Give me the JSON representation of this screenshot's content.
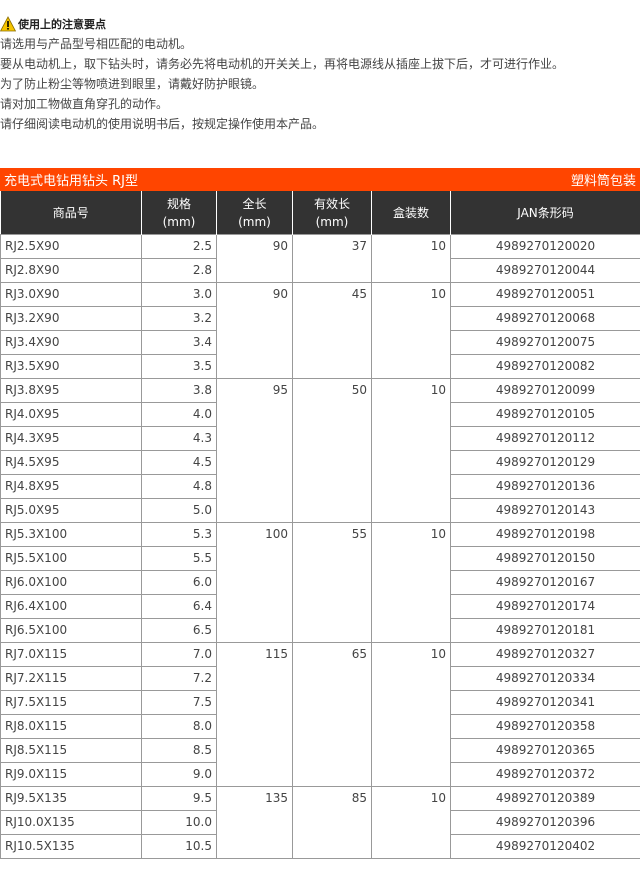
{
  "notes": {
    "title": "使用上的注意要点",
    "icon": "warning-icon",
    "lines": [
      "请选用与产品型号相匹配的电动机。",
      "要从电动机上，取下钻头时，请务必先将电动机的开关关上，再将电源线从插座上拔下后，才可进行作业。",
      "为了防止粉尘等物喷进到眼里，请戴好防护眼镜。",
      "请对加工物做直角穿孔的动作。",
      "请仔细阅读电动机的使用说明书后，按规定操作使用本产品。"
    ]
  },
  "table_title": {
    "left": "充电式电钻用钻头 RJ型",
    "right": "塑料筒包装",
    "color": "#ff4500"
  },
  "headers": [
    {
      "l1": "商品号",
      "l2": ""
    },
    {
      "l1": "规格",
      "l2": "(mm)"
    },
    {
      "l1": "全长",
      "l2": "(mm)"
    },
    {
      "l1": "有效长",
      "l2": "(mm)"
    },
    {
      "l1": "盒装数",
      "l2": ""
    },
    {
      "l1": "JAN条形码",
      "l2": ""
    }
  ],
  "groups": [
    {
      "total_length": "90",
      "effective_length": "37",
      "box_qty": "10",
      "items": [
        {
          "code": "RJ2.5X90",
          "size": "2.5",
          "jan": "4989270120020"
        },
        {
          "code": "RJ2.8X90",
          "size": "2.8",
          "jan": "4989270120044"
        }
      ]
    },
    {
      "total_length": "90",
      "effective_length": "45",
      "box_qty": "10",
      "items": [
        {
          "code": "RJ3.0X90",
          "size": "3.0",
          "jan": "4989270120051"
        },
        {
          "code": "RJ3.2X90",
          "size": "3.2",
          "jan": "4989270120068"
        },
        {
          "code": "RJ3.4X90",
          "size": "3.4",
          "jan": "4989270120075"
        },
        {
          "code": "RJ3.5X90",
          "size": "3.5",
          "jan": "4989270120082"
        }
      ]
    },
    {
      "total_length": "95",
      "effective_length": "50",
      "box_qty": "10",
      "items": [
        {
          "code": "RJ3.8X95",
          "size": "3.8",
          "jan": "4989270120099"
        },
        {
          "code": "RJ4.0X95",
          "size": "4.0",
          "jan": "4989270120105"
        },
        {
          "code": "RJ4.3X95",
          "size": "4.3",
          "jan": "4989270120112"
        },
        {
          "code": "RJ4.5X95",
          "size": "4.5",
          "jan": "4989270120129"
        },
        {
          "code": "RJ4.8X95",
          "size": "4.8",
          "jan": "4989270120136"
        },
        {
          "code": "RJ5.0X95",
          "size": "5.0",
          "jan": "4989270120143"
        }
      ]
    },
    {
      "total_length": "100",
      "effective_length": "55",
      "box_qty": "10",
      "items": [
        {
          "code": "RJ5.3X100",
          "size": "5.3",
          "jan": "4989270120198"
        },
        {
          "code": "RJ5.5X100",
          "size": "5.5",
          "jan": "4989270120150"
        },
        {
          "code": "RJ6.0X100",
          "size": "6.0",
          "jan": "4989270120167"
        },
        {
          "code": "RJ6.4X100",
          "size": "6.4",
          "jan": "4989270120174"
        },
        {
          "code": "RJ6.5X100",
          "size": "6.5",
          "jan": "4989270120181"
        }
      ]
    },
    {
      "total_length": "115",
      "effective_length": "65",
      "box_qty": "10",
      "items": [
        {
          "code": "RJ7.0X115",
          "size": "7.0",
          "jan": "4989270120327"
        },
        {
          "code": "RJ7.2X115",
          "size": "7.2",
          "jan": "4989270120334"
        },
        {
          "code": "RJ7.5X115",
          "size": "7.5",
          "jan": "4989270120341"
        },
        {
          "code": "RJ8.0X115",
          "size": "8.0",
          "jan": "4989270120358"
        },
        {
          "code": "RJ8.5X115",
          "size": "8.5",
          "jan": "4989270120365"
        },
        {
          "code": "RJ9.0X115",
          "size": "9.0",
          "jan": "4989270120372"
        }
      ]
    },
    {
      "total_length": "135",
      "effective_length": "85",
      "box_qty": "10",
      "items": [
        {
          "code": "RJ9.5X135",
          "size": "9.5",
          "jan": "4989270120389"
        },
        {
          "code": "RJ10.0X135",
          "size": "10.0",
          "jan": "4989270120396"
        },
        {
          "code": "RJ10.5X135",
          "size": "10.5",
          "jan": "4989270120402"
        }
      ]
    }
  ]
}
